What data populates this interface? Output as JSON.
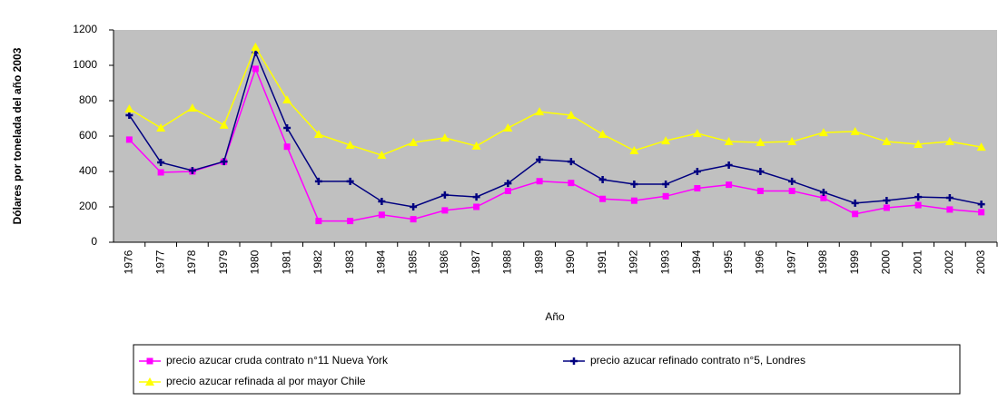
{
  "chart_data": {
    "type": "line",
    "y_label": "Dólares por tonelada del año 2003",
    "x_label": "Año",
    "categories": [
      "1976",
      "1977",
      "1978",
      "1979",
      "1980",
      "1981",
      "1982",
      "1983",
      "1984",
      "1985",
      "1986",
      "1987",
      "1988",
      "1989",
      "1990",
      "1991",
      "1992",
      "1993",
      "1994",
      "1995",
      "1996",
      "1997",
      "1998",
      "1999",
      "2000",
      "2001",
      "2002",
      "2003"
    ],
    "ylim": [
      0,
      1200
    ],
    "yticks": [
      0,
      200,
      400,
      600,
      800,
      1000,
      1200
    ],
    "series": [
      {
        "name": "precio azucar cruda contrato n°11 Nueva York",
        "color": "#ff00ff",
        "marker": "square",
        "values": [
          580,
          395,
          400,
          455,
          980,
          540,
          120,
          120,
          155,
          130,
          180,
          200,
          290,
          345,
          335,
          245,
          235,
          260,
          305,
          325,
          290,
          290,
          250,
          160,
          195,
          210,
          185,
          170
        ]
      },
      {
        "name": "precio azucar refinado contrato n°5, Londres",
        "color": "#000080",
        "marker": "plus",
        "values": [
          718,
          451,
          405,
          456,
          1072,
          646,
          344,
          344,
          231,
          200,
          267,
          256,
          333,
          467,
          456,
          354,
          328,
          328,
          400,
          436,
          400,
          344,
          282,
          221,
          236,
          256,
          251,
          215
        ]
      },
      {
        "name": "precio azucar refinada al por mayor Chile",
        "color": "#ffff00",
        "marker": "triangle",
        "values": [
          754,
          646,
          759,
          662,
          1103,
          805,
          610,
          549,
          492,
          564,
          590,
          544,
          646,
          738,
          718,
          610,
          518,
          574,
          615,
          569,
          564,
          569,
          620,
          626,
          569,
          554,
          569,
          538
        ]
      }
    ]
  }
}
